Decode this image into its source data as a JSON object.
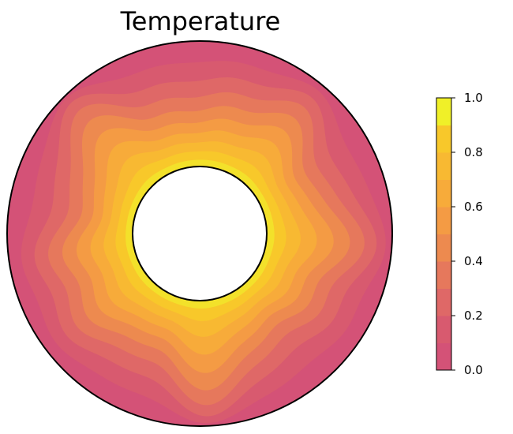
{
  "chart_data": {
    "type": "heatmap",
    "title": "Temperature",
    "geometry": "annulus",
    "radius_ratio": 0.35,
    "value_range": [
      0.0,
      1.0
    ],
    "contour_levels": [
      0.0,
      0.1,
      0.2,
      0.3,
      0.4,
      0.5,
      0.6,
      0.7,
      0.8,
      0.9,
      1.0
    ],
    "colorbar": {
      "position": "right",
      "ticks": [
        0.0,
        0.2,
        0.4,
        0.6,
        0.8,
        1.0
      ],
      "tick_labels": [
        "0.0",
        "0.2",
        "0.4",
        "0.6",
        "0.8",
        "1.0"
      ]
    },
    "colors": {
      "level_0.0": "#d45277",
      "level_0.1": "#d85a6f",
      "level_0.2": "#df6867",
      "level_0.3": "#e6785c",
      "level_0.4": "#ed8a4f",
      "level_0.5": "#f49b44",
      "level_0.6": "#f7ab3a",
      "level_0.7": "#f8b932",
      "level_0.8": "#f8c82a",
      "level_0.9": "#f3e12a",
      "level_1.0": "#f0f028"
    }
  }
}
